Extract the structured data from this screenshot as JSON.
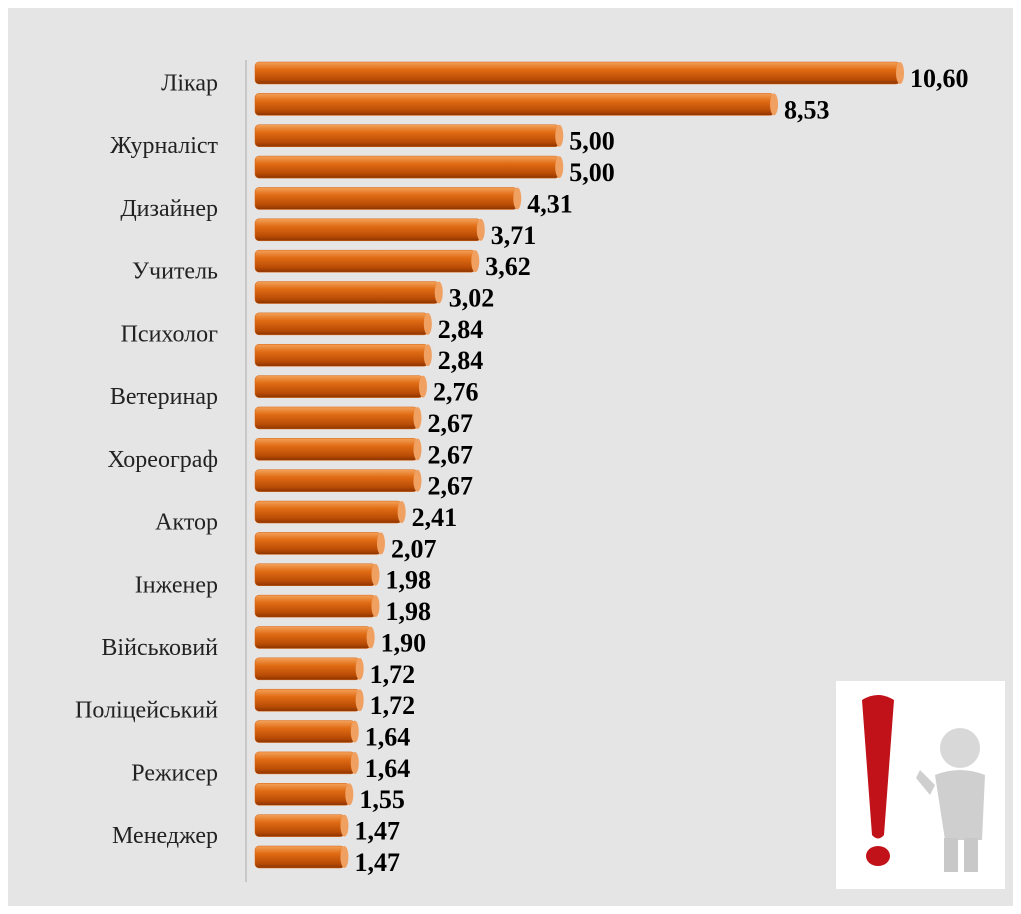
{
  "chart_data": {
    "type": "hbar",
    "categories": [
      "Лікар",
      null,
      "Журналіст",
      null,
      "Дизайнер",
      null,
      "Учитель",
      null,
      "Психолог",
      null,
      "Ветеринар",
      null,
      "Хореограф",
      null,
      "Актор",
      null,
      "Інженер",
      null,
      "Військовий",
      null,
      "Поліцейський",
      null,
      "Режисер",
      null,
      "Менеджер",
      null
    ],
    "values": [
      10.6,
      8.53,
      5.0,
      5.0,
      4.31,
      3.71,
      3.62,
      3.02,
      2.84,
      2.84,
      2.76,
      2.67,
      2.67,
      2.67,
      2.41,
      2.07,
      1.98,
      1.98,
      1.9,
      1.72,
      1.72,
      1.64,
      1.64,
      1.55,
      1.47,
      1.47
    ],
    "value_labels": [
      "10,60",
      "8,53",
      "5,00",
      "5,00",
      "4,31",
      "3,71",
      "3,62",
      "3,02",
      "2,84",
      "2,84",
      "2,76",
      "2,67",
      "2,67",
      "2,67",
      "2,41",
      "2,07",
      "1,98",
      "1,98",
      "1,90",
      "1,72",
      "1,72",
      "1,64",
      "1,64",
      "1,55",
      "1,47",
      "1,47"
    ],
    "color": "#d9620f"
  }
}
